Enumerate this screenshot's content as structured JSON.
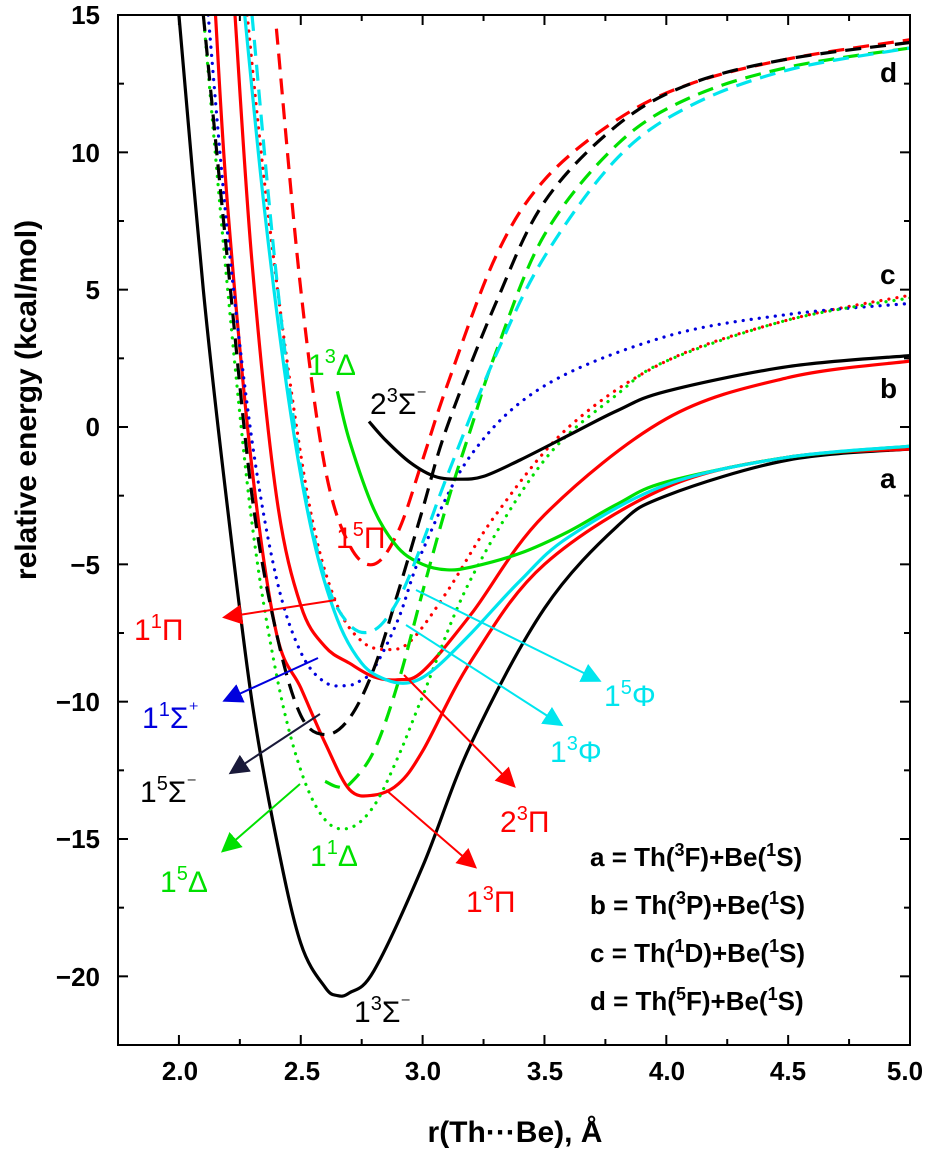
{
  "chart_data": {
    "type": "line",
    "title": "",
    "xlabel": "r(Th···Be), Å",
    "ylabel": "relative energy (kcal/mol)",
    "xlim": [
      1.75,
      5.0
    ],
    "ylim": [
      -22.5,
      15
    ],
    "xticks": [
      "2.0",
      "2.5",
      "3.0",
      "3.5",
      "4.0",
      "4.5",
      "5.0"
    ],
    "yticks": [
      "15",
      "10",
      "5",
      "0",
      "−10",
      "−15",
      "−20"
    ],
    "ytick_values": [
      15,
      10,
      5,
      0,
      -10,
      -15,
      -20
    ],
    "ytick_minus5": "−5",
    "colors": {
      "black": "#000000",
      "red": "#ff0000",
      "green": "#00e000",
      "cyan": "#00e5ee",
      "blue": "#0000dd"
    },
    "series": [
      {
        "name": "1³Σ⁻",
        "color": "#000000",
        "style": "solid",
        "x": [
          2.0,
          2.1,
          2.2,
          2.3,
          2.4,
          2.5,
          2.6,
          2.65,
          2.7,
          2.8,
          3.0,
          3.2,
          3.5,
          3.8,
          4.0,
          4.5,
          5.0
        ],
        "y": [
          15,
          5,
          -3,
          -10,
          -15,
          -18.8,
          -20.4,
          -20.7,
          -20.6,
          -19.8,
          -16,
          -11.5,
          -6.6,
          -3.6,
          -2.5,
          -1.2,
          -0.8
        ]
      },
      {
        "name": "1³Π",
        "color": "#ff0000",
        "style": "solid",
        "x": [
          2.15,
          2.2,
          2.3,
          2.4,
          2.5,
          2.6,
          2.7,
          2.8,
          2.9,
          3.0,
          3.2,
          3.5,
          4.0,
          4.5,
          5.0
        ],
        "y": [
          15,
          8,
          -1.5,
          -7.5,
          -9.5,
          -11.5,
          -13.2,
          -13.4,
          -13,
          -11.8,
          -8.5,
          -5,
          -2.2,
          -1.1,
          -0.8
        ]
      },
      {
        "name": "2³Π",
        "color": "#ff0000",
        "style": "solid",
        "x": [
          2.23,
          2.3,
          2.4,
          2.5,
          2.6,
          2.7,
          2.8,
          2.9,
          3.0,
          3.2,
          3.5,
          4.0,
          4.5,
          5.0
        ],
        "y": [
          15,
          6,
          -2.5,
          -6.5,
          -8,
          -8.6,
          -9.1,
          -9.2,
          -8.9,
          -6.8,
          -3.2,
          0.3,
          1.8,
          2.4
        ]
      },
      {
        "name": "1¹Π",
        "color": "#ff0000",
        "style": "dotted",
        "x": [
          2.28,
          2.35,
          2.45,
          2.55,
          2.65,
          2.75,
          2.85,
          2.95,
          3.1,
          3.3,
          3.6,
          4.0,
          4.5,
          5.0
        ],
        "y": [
          15,
          9,
          2,
          -3.5,
          -6.5,
          -7.8,
          -8.1,
          -7.8,
          -6,
          -3.2,
          0,
          2.4,
          3.9,
          4.8
        ]
      },
      {
        "name": "1⁵Π",
        "color": "#ff0000",
        "style": "dashed",
        "x": [
          2.4,
          2.5,
          2.6,
          2.7,
          2.8,
          2.9,
          3.0,
          3.1,
          3.3,
          3.5,
          3.8,
          4.1,
          4.5,
          5.0
        ],
        "y": [
          14.5,
          5,
          -1.5,
          -4.3,
          -5,
          -3.8,
          -1.2,
          1.5,
          6.2,
          9,
          11.2,
          12.5,
          13.4,
          14.1
        ]
      },
      {
        "name": "1¹Σ⁺",
        "color": "#0000dd",
        "style": "dotted",
        "x": [
          2.12,
          2.2,
          2.3,
          2.4,
          2.5,
          2.6,
          2.7,
          2.75,
          2.8,
          2.9,
          3.0,
          3.2,
          3.5,
          4.0,
          4.5,
          5.0
        ],
        "y": [
          15,
          7,
          -0.5,
          -5.5,
          -8.2,
          -9.3,
          -9.4,
          -9.2,
          -8.8,
          -7,
          -4.5,
          -1,
          1.5,
          3.3,
          4.1,
          4.5
        ]
      },
      {
        "name": "1¹Δ",
        "color": "#00e000",
        "style": "dotted",
        "x": [
          2.1,
          2.2,
          2.3,
          2.4,
          2.5,
          2.6,
          2.7,
          2.8,
          2.9,
          3.0,
          3.2,
          3.5,
          3.8,
          4.0,
          4.5,
          5.0
        ],
        "y": [
          15,
          5,
          -3.5,
          -9,
          -12.5,
          -14.3,
          -14.6,
          -13.8,
          -12,
          -9.8,
          -5.5,
          -1.2,
          1.2,
          2.4,
          3.9,
          4.7
        ]
      },
      {
        "name": "1⁵Δ",
        "color": "#00e000",
        "style": "dashed",
        "x": [
          2.6,
          2.65,
          2.7,
          2.8,
          2.9,
          3.0,
          3.1,
          3.2,
          3.3,
          3.5,
          3.8,
          4.1,
          4.5,
          5.0
        ],
        "y": [
          -12.9,
          -13.1,
          -13,
          -11.8,
          -9.3,
          -6,
          -2.8,
          0,
          2.7,
          7,
          10.3,
          12,
          13.1,
          13.8
        ]
      },
      {
        "name": "1³Δ",
        "color": "#00e000",
        "style": "solid",
        "x": [
          2.65,
          2.7,
          2.8,
          2.9,
          3.0,
          3.1,
          3.2,
          3.4,
          3.6,
          3.8,
          4.0,
          4.5,
          5.0
        ],
        "y": [
          1.3,
          -0.5,
          -3,
          -4.4,
          -5,
          -5.2,
          -5.1,
          -4.6,
          -3.8,
          -2.8,
          -2,
          -1.1,
          -0.7
        ]
      },
      {
        "name": "2³Σ⁻",
        "color": "#000000",
        "style": "solid",
        "x": [
          2.78,
          2.85,
          2.95,
          3.05,
          3.15,
          3.25,
          3.4,
          3.6,
          3.8,
          4.0,
          4.5,
          5.0
        ],
        "y": [
          0.2,
          -0.5,
          -1.3,
          -1.8,
          -1.9,
          -1.8,
          -1.2,
          -0.3,
          0.6,
          1.3,
          2.2,
          2.6
        ]
      },
      {
        "name": "1⁵Σ⁻",
        "color": "#000000",
        "style": "dashed",
        "x": [
          2.1,
          2.2,
          2.3,
          2.4,
          2.5,
          2.6,
          2.7,
          2.8,
          2.9,
          3.0,
          3.1,
          3.3,
          3.5,
          3.8,
          4.1,
          4.5,
          5.0
        ],
        "y": [
          15,
          6,
          -2.5,
          -7.5,
          -10.5,
          -11.2,
          -10.6,
          -8.8,
          -6,
          -3,
          0,
          4.5,
          8.2,
          11,
          12.5,
          13.4,
          14
        ]
      },
      {
        "name": "1⁵Φ",
        "color": "#00e5ee",
        "style": "dashed",
        "x": [
          2.3,
          2.4,
          2.5,
          2.6,
          2.7,
          2.8,
          2.9,
          3.0,
          3.1,
          3.3,
          3.5,
          3.8,
          4.1,
          4.5,
          5.0
        ],
        "y": [
          15,
          5.5,
          -1.5,
          -5.5,
          -7.2,
          -7.4,
          -6.3,
          -4.2,
          -1.8,
          2.6,
          6.2,
          9.8,
          11.7,
          13,
          13.8
        ]
      },
      {
        "name": "1³Φ",
        "color": "#00e5ee",
        "style": "solid",
        "x": [
          2.27,
          2.35,
          2.45,
          2.55,
          2.65,
          2.75,
          2.85,
          2.95,
          3.05,
          3.2,
          3.4,
          3.6,
          4.0,
          4.5,
          5.0
        ],
        "y": [
          15,
          8,
          1,
          -4,
          -7,
          -8.6,
          -9.2,
          -9.3,
          -8.8,
          -7.5,
          -5.6,
          -4,
          -2.1,
          -1.1,
          -0.7
        ]
      }
    ],
    "state_labels": {
      "s13Sig": {
        "base": "1",
        "sup": "3",
        "sym": "Σ",
        "tail": "⁻"
      },
      "s23Sig": {
        "base": "2",
        "sup": "3",
        "sym": "Σ",
        "tail": "⁻"
      },
      "s15Sig": {
        "base": "1",
        "sup": "5",
        "sym": "Σ",
        "tail": "⁻"
      },
      "s11Sig": {
        "base": "1",
        "sup": "1",
        "sym": "Σ",
        "tail": "⁺"
      },
      "s11Pi": {
        "base": "1",
        "sup": "1",
        "sym": "Π",
        "tail": ""
      },
      "s15Pi": {
        "base": "1",
        "sup": "5",
        "sym": "Π",
        "tail": ""
      },
      "s23Pi": {
        "base": "2",
        "sup": "3",
        "sym": "Π",
        "tail": ""
      },
      "s13Pi": {
        "base": "1",
        "sup": "3",
        "sym": "Π",
        "tail": ""
      },
      "s13Del": {
        "base": "1",
        "sup": "3",
        "sym": "Δ",
        "tail": ""
      },
      "s11Del": {
        "base": "1",
        "sup": "1",
        "sym": "Δ",
        "tail": ""
      },
      "s15Del": {
        "base": "1",
        "sup": "5",
        "sym": "Δ",
        "tail": ""
      },
      "s15Phi": {
        "base": "1",
        "sup": "5",
        "sym": "Φ",
        "tail": ""
      },
      "s13Phi": {
        "base": "1",
        "sup": "3",
        "sym": "Φ",
        "tail": ""
      }
    },
    "limit_tags": {
      "a": "a",
      "b": "b",
      "c": "c",
      "d": "d"
    },
    "legend": [
      {
        "tag": "a",
        "eq": " = Th(",
        "m1": "3",
        "t1": "F)+Be(",
        "m2": "1",
        "t2": "S)"
      },
      {
        "tag": "b",
        "eq": " = Th(",
        "m1": "3",
        "t1": "P)+Be(",
        "m2": "1",
        "t2": "S)"
      },
      {
        "tag": "c",
        "eq": " = Th(",
        "m1": "1",
        "t1": "D)+Be(",
        "m2": "1",
        "t2": "S)"
      },
      {
        "tag": "d",
        "eq": " = Th(",
        "m1": "5",
        "t1": "F)+Be(",
        "m2": "1",
        "t2": "S)"
      }
    ],
    "legend_position": "bottom-right"
  }
}
